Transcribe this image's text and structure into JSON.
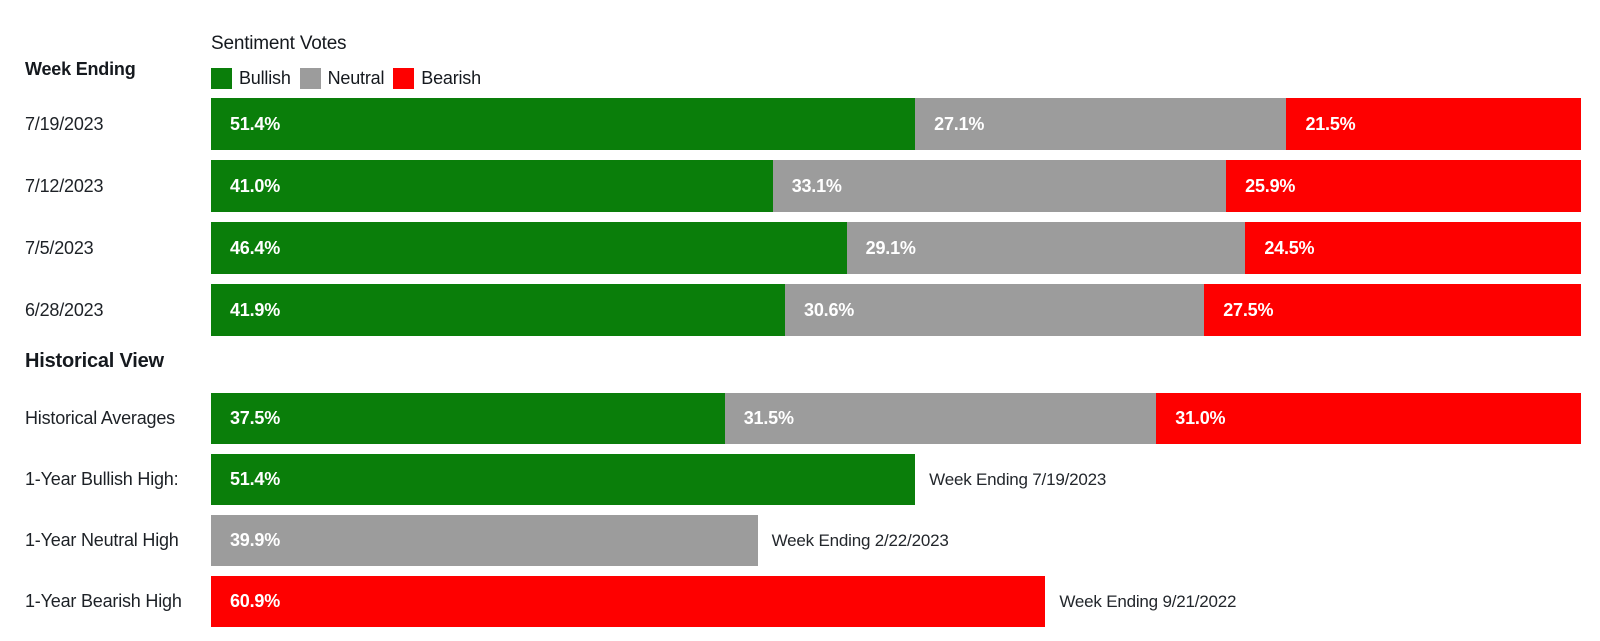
{
  "header": {
    "week_ending_label": "Week Ending",
    "historical_view_label": "Historical View"
  },
  "chart_data": {
    "type": "bar",
    "orientation": "horizontal-stacked",
    "title": "Sentiment Votes",
    "xlim": [
      0,
      100
    ],
    "unit": "%",
    "legend_position": "top",
    "legend": [
      {
        "label": "Bullish",
        "color": "#0a7e0a"
      },
      {
        "label": "Neutral",
        "color": "#9c9c9c"
      },
      {
        "label": "Bearish",
        "color": "#fe0000"
      }
    ],
    "weekly_rows": [
      {
        "label": "7/19/2023",
        "values": [
          51.4,
          27.1,
          21.5
        ],
        "display": [
          "51.4%",
          "27.1%",
          "21.5%"
        ]
      },
      {
        "label": "7/12/2023",
        "values": [
          41.0,
          33.1,
          25.9
        ],
        "display": [
          "41.0%",
          "33.1%",
          "25.9%"
        ]
      },
      {
        "label": "7/5/2023",
        "values": [
          46.4,
          29.1,
          24.5
        ],
        "display": [
          "46.4%",
          "29.1%",
          "24.5%"
        ]
      },
      {
        "label": "6/28/2023",
        "values": [
          41.9,
          30.6,
          27.5
        ],
        "display": [
          "41.9%",
          "30.6%",
          "27.5%"
        ]
      }
    ],
    "historical_averages": {
      "label": "Historical Averages",
      "values": [
        37.5,
        31.5,
        31.0
      ],
      "display": [
        "37.5%",
        "31.5%",
        "31.0%"
      ]
    },
    "one_year_highs": [
      {
        "label": "1-Year Bullish High:",
        "series": "Bullish",
        "value": 51.4,
        "display": "51.4%",
        "annotation": "Week Ending 7/19/2023",
        "color": "#0a7e0a"
      },
      {
        "label": "1-Year Neutral High",
        "series": "Neutral",
        "value": 39.9,
        "display": "39.9%",
        "annotation": "Week Ending 2/22/2023",
        "color": "#9c9c9c"
      },
      {
        "label": "1-Year Bearish High",
        "series": "Bearish",
        "value": 60.9,
        "display": "60.9%",
        "annotation": "Week Ending 9/21/2022",
        "color": "#fe0000"
      }
    ]
  }
}
